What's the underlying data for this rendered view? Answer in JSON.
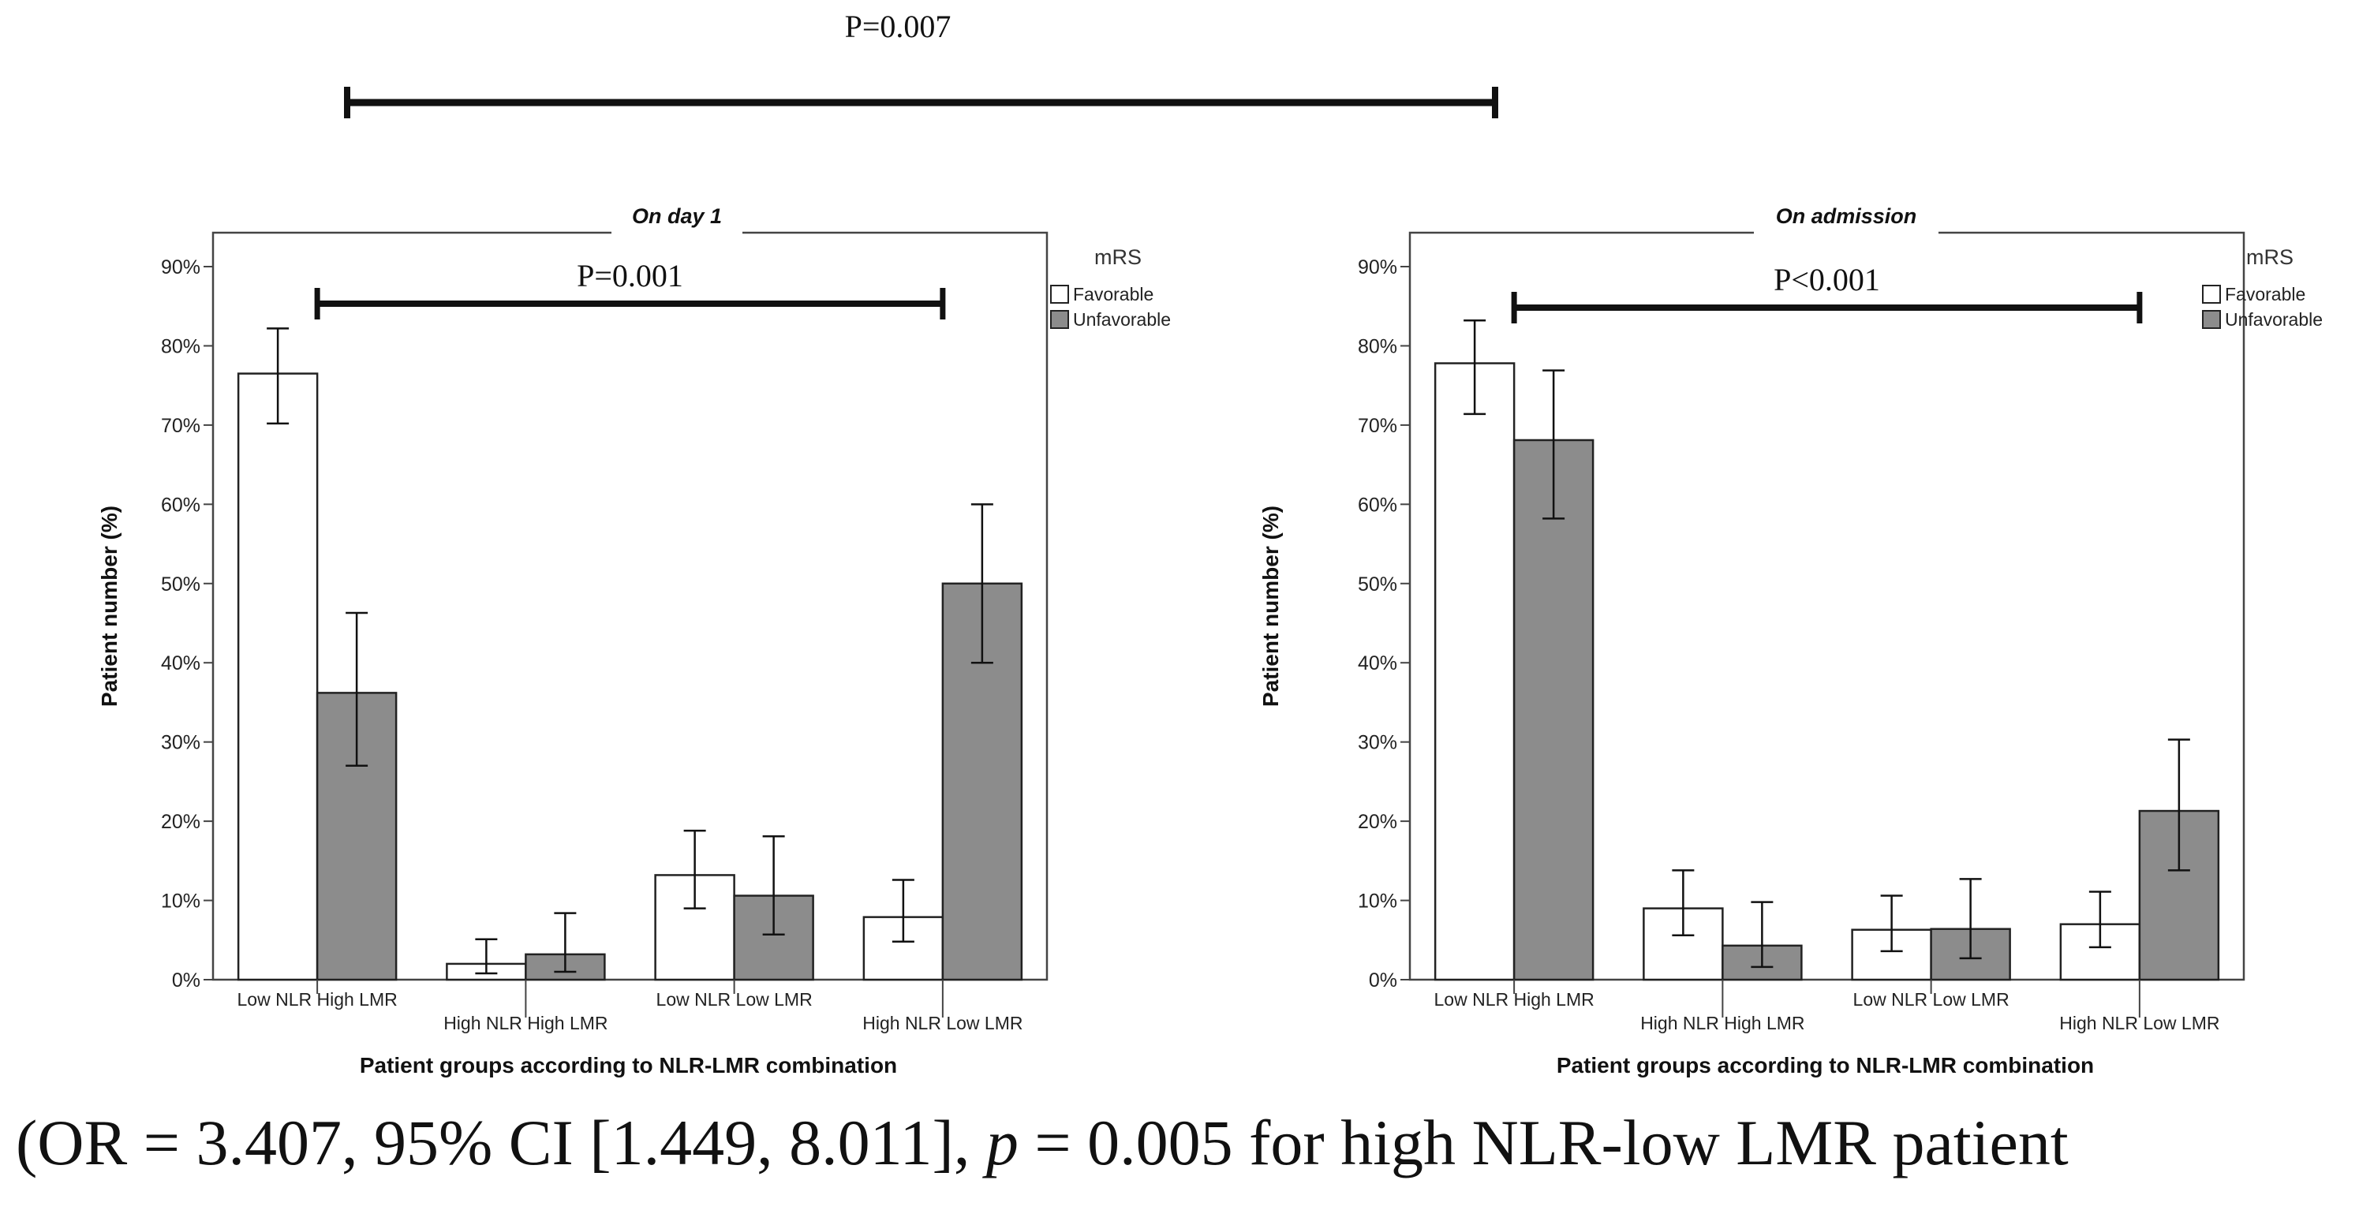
{
  "top_comparison": {
    "label": "P=0.007"
  },
  "legend_colors": {
    "favorable": "#ffffff",
    "unfavorable": "#8c8c8c"
  },
  "chart_data": [
    {
      "type": "bar",
      "title": "On day 1",
      "ylabel": "Patient number (%)",
      "xlabel": "Patient groups according to NLR-LMR combination",
      "categories": [
        "Low NLR High LMR",
        "High NLR High LMR",
        "Low NLR Low LMR",
        "High NLR Low LMR"
      ],
      "ylim": [
        0,
        90
      ],
      "yticks": [
        "0%",
        "10%",
        "20%",
        "30%",
        "40%",
        "50%",
        "60%",
        "70%",
        "80%",
        "90%"
      ],
      "legend_title": "mRS",
      "series": [
        {
          "name": "Favorable",
          "values": [
            76.5,
            2.0,
            13.2,
            7.9
          ],
          "ci_low": [
            70.2,
            0.8,
            9.0,
            4.8
          ],
          "ci_high": [
            82.2,
            5.1,
            18.8,
            12.6
          ]
        },
        {
          "name": "Unfavorable",
          "values": [
            36.2,
            3.2,
            10.6,
            50.0
          ],
          "ci_low": [
            27.0,
            1.0,
            5.7,
            40.0
          ],
          "ci_high": [
            46.3,
            8.4,
            18.1,
            60.0
          ]
        }
      ],
      "comparison": {
        "label": "P=0.001",
        "from": 0,
        "to": 3
      }
    },
    {
      "type": "bar",
      "title": "On admission",
      "ylabel": "Patient number (%)",
      "xlabel": "Patient groups according to NLR-LMR combination",
      "categories": [
        "Low NLR High LMR",
        "High NLR High LMR",
        "Low NLR Low LMR",
        "High NLR Low LMR"
      ],
      "ylim": [
        0,
        90
      ],
      "yticks": [
        "0%",
        "10%",
        "20%",
        "30%",
        "40%",
        "50%",
        "60%",
        "70%",
        "80%",
        "90%"
      ],
      "legend_title": "mRS",
      "series": [
        {
          "name": "Favorable",
          "values": [
            77.8,
            9.0,
            6.3,
            7.0
          ],
          "ci_low": [
            71.4,
            5.6,
            3.6,
            4.1
          ],
          "ci_high": [
            83.2,
            13.8,
            10.6,
            11.1
          ]
        },
        {
          "name": "Unfavorable",
          "values": [
            68.1,
            4.3,
            6.4,
            21.3
          ],
          "ci_low": [
            58.2,
            1.6,
            2.7,
            13.8
          ],
          "ci_high": [
            76.9,
            9.8,
            12.7,
            30.3
          ]
        }
      ],
      "comparison": {
        "label": "P<0.001",
        "from": 0,
        "to": 3
      }
    }
  ],
  "caption": {
    "prefix": "(OR = 3.407, 95% CI [1.449, 8.011], ",
    "p": "p",
    "suffix": " = 0.005 for high NLR-low LMR patient"
  }
}
